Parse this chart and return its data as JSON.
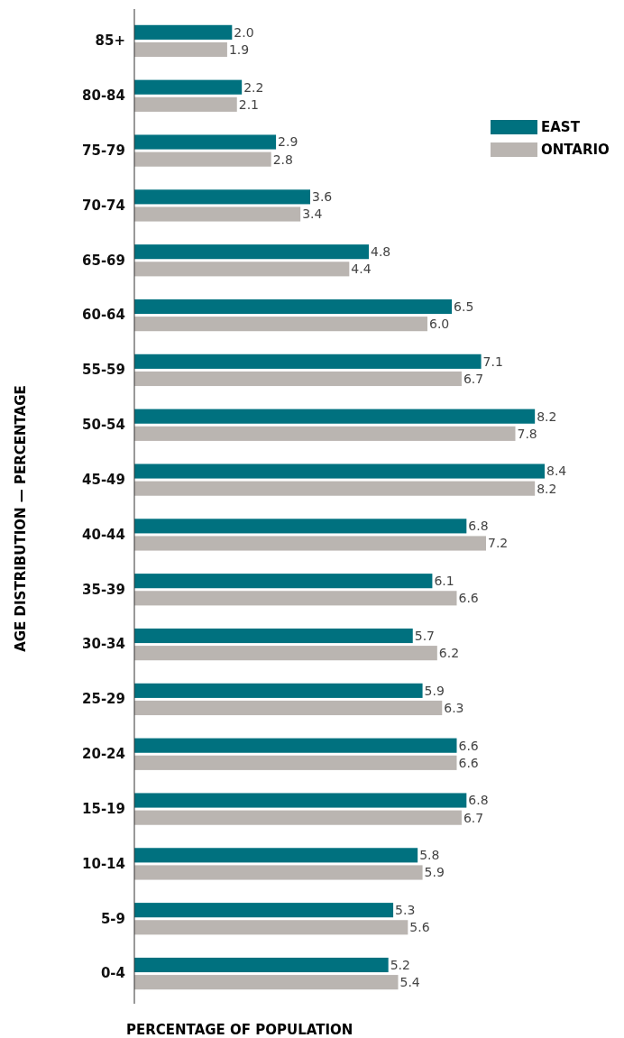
{
  "chart_data": {
    "type": "bar",
    "orientation": "horizontal",
    "xlabel": "PERCENTAGE OF POPULATION",
    "ylabel": "AGE DISTRIBUTION — PERCENTAGE",
    "categories": [
      "85+",
      "80-84",
      "75-79",
      "70-74",
      "65-69",
      "60-64",
      "55-59",
      "50-54",
      "45-49",
      "40-44",
      "35-39",
      "30-34",
      "25-29",
      "20-24",
      "15-19",
      "10-14",
      "5-9",
      "0-4"
    ],
    "series": [
      {
        "name": "EAST",
        "color": "#00717f",
        "values": [
          2.0,
          2.2,
          2.9,
          3.6,
          4.8,
          6.5,
          7.1,
          8.2,
          8.4,
          6.8,
          6.1,
          5.7,
          5.9,
          6.6,
          6.8,
          5.8,
          5.3,
          5.2
        ],
        "value_labels": [
          "2.0",
          "2.2",
          "2.9",
          "3.6",
          "4.8",
          "6.5",
          "7.1",
          "8.2",
          "8.4",
          "6.8",
          "6.1",
          "5.7",
          "5.9",
          "6.6",
          "6.8",
          "5.8",
          "5.3",
          "5.2"
        ]
      },
      {
        "name": "ONTARIO",
        "color": "#bab5b1",
        "values": [
          1.9,
          2.1,
          2.8,
          3.4,
          4.4,
          6.0,
          6.7,
          7.8,
          8.2,
          7.2,
          6.6,
          6.2,
          6.3,
          6.6,
          6.7,
          5.9,
          5.6,
          5.4
        ],
        "value_labels": [
          "1.9",
          "2.1",
          "2.8",
          "3.4",
          "4.4",
          "6.0",
          "6.7",
          "7.8",
          "8.2",
          "7.2",
          "6.6",
          "6.2",
          "6.3",
          "6.6",
          "6.7",
          "5.9",
          "5.6",
          "5.4"
        ]
      }
    ],
    "legend": "top right"
  }
}
